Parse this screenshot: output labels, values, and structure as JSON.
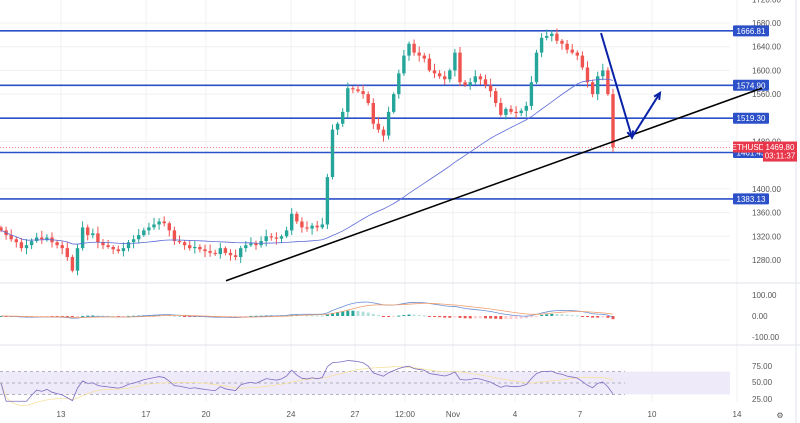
{
  "chart_data": {
    "type": "candlestick",
    "symbol": "ETHUSD",
    "last_price": "1469.80",
    "countdown": "03:11:37",
    "price_axis_ticks": [
      "1720.00",
      "1680.00",
      "1640.00",
      "1600.00",
      "1560.00",
      "1480.00",
      "1400.00",
      "1360.00",
      "1320.00",
      "1280.00"
    ],
    "time_axis_ticks": [
      "13",
      "17",
      "20",
      "24",
      "27",
      "12:00",
      "Nov",
      "4",
      "7",
      "10",
      "14"
    ],
    "ylim": [
      1240,
      1722
    ],
    "closes": [
      1330,
      1322,
      1315,
      1310,
      1300,
      1305,
      1312,
      1318,
      1315,
      1318,
      1310,
      1305,
      1300,
      1285,
      1262,
      1300,
      1335,
      1322,
      1325,
      1310,
      1305,
      1302,
      1298,
      1295,
      1300,
      1310,
      1315,
      1322,
      1330,
      1335,
      1340,
      1345,
      1342,
      1330,
      1312,
      1310,
      1305,
      1300,
      1302,
      1298,
      1295,
      1292,
      1290,
      1300,
      1292,
      1288,
      1285,
      1300,
      1305,
      1308,
      1305,
      1312,
      1320,
      1318,
      1316,
      1320,
      1330,
      1358,
      1345,
      1335,
      1333,
      1338,
      1335,
      1340,
      1420,
      1500,
      1510,
      1530,
      1570,
      1568,
      1565,
      1560,
      1545,
      1510,
      1500,
      1490,
      1530,
      1560,
      1595,
      1625,
      1645,
      1630,
      1625,
      1620,
      1600,
      1595,
      1590,
      1585,
      1600,
      1630,
      1580,
      1575,
      1580,
      1590,
      1585,
      1575,
      1565,
      1545,
      1525,
      1535,
      1530,
      1528,
      1532,
      1540,
      1580,
      1630,
      1655,
      1658,
      1662,
      1650,
      1645,
      1635,
      1630,
      1625,
      1605,
      1580,
      1560,
      1590,
      1600,
      1560,
      1470
    ],
    "moving_average": {
      "period": 50,
      "color": "#5b6bd6"
    },
    "levels": [
      {
        "label": "1666.81",
        "value": 1666.81
      },
      {
        "label": "1574.90",
        "value": 1574.9
      },
      {
        "label": "1519.30",
        "value": 1519.3
      },
      {
        "label": "1461.43",
        "value": 1461.43
      },
      {
        "label": "1383.13",
        "value": 1383.13
      }
    ],
    "trendline": {
      "from_price": 1245,
      "to_price": 1570,
      "color": "#000000"
    },
    "projection_arrows": {
      "color": "#0a22a8",
      "points_price": [
        1663,
        1487,
        1562
      ]
    },
    "macd": {
      "axis_ticks": [
        "100.00",
        "0.00",
        "-100.00"
      ]
    },
    "rsi": {
      "axis_ticks": [
        "75.00",
        "50.00",
        "25.00"
      ],
      "band": [
        30,
        70
      ]
    },
    "colors": {
      "up": "#26a69a",
      "down": "#ef5350",
      "level": "#2b50c8",
      "tag_red": "#e8364a"
    }
  }
}
